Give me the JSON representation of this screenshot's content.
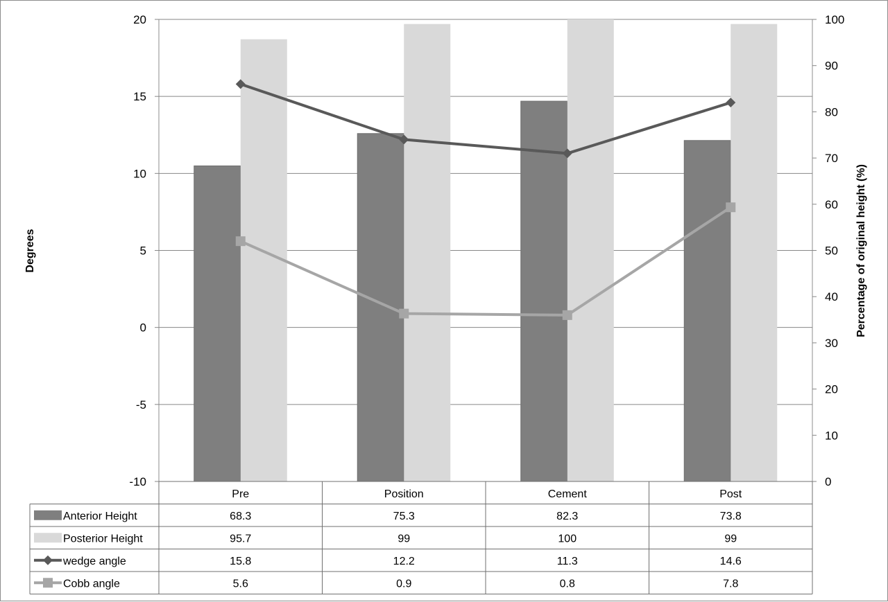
{
  "chart_data": {
    "type": "bar",
    "categories": [
      "Pre",
      "Position",
      "Cement",
      "Post"
    ],
    "y_left": {
      "label": "Degrees",
      "lim": [
        -10,
        20
      ],
      "ticks": [
        -10,
        -5,
        0,
        5,
        10,
        15,
        20
      ]
    },
    "y_right": {
      "label": "Percentage of original height (%)",
      "lim": [
        0,
        100
      ],
      "ticks": [
        0,
        10,
        20,
        30,
        40,
        50,
        60,
        70,
        80,
        90,
        100
      ]
    },
    "grid": "horizontal",
    "legend": "data-table",
    "series": [
      {
        "name": "Anterior Height",
        "kind": "bar",
        "axis": "right",
        "color": "#7f7f7f",
        "values": [
          68.3,
          75.3,
          82.3,
          73.8
        ],
        "labels": [
          "68.3",
          "75.3",
          "82.3",
          "73.8"
        ]
      },
      {
        "name": "Posterior Height",
        "kind": "bar",
        "axis": "right",
        "color": "#d9d9d9",
        "values": [
          95.7,
          99,
          100,
          99
        ],
        "labels": [
          "95.7",
          "99",
          "100",
          "99"
        ]
      },
      {
        "name": "wedge angle",
        "kind": "line",
        "marker": "diamond",
        "axis": "left",
        "color": "#595959",
        "values": [
          15.8,
          12.2,
          11.3,
          14.6
        ],
        "labels": [
          "15.8",
          "12.2",
          "11.3",
          "14.6"
        ]
      },
      {
        "name": "Cobb angle",
        "kind": "line",
        "marker": "square",
        "axis": "left",
        "color": "#a6a6a6",
        "values": [
          5.6,
          0.9,
          0.8,
          7.8
        ],
        "labels": [
          "5.6",
          "0.9",
          "0.8",
          "7.8"
        ]
      }
    ]
  }
}
